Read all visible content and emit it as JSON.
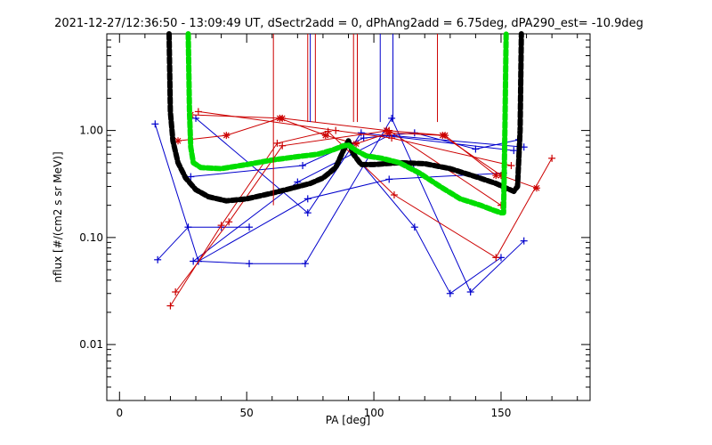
{
  "chart_data": {
    "type": "line",
    "title": "2021-12-27/12:36:50 - 13:09:49 UT, dSectr2add = 0, dPhAng2add = 6.75deg, dPA290_est= -10.9deg",
    "xlabel": "PA [deg]",
    "ylabel": "nflux [#/(cm2 s sr MeV)]",
    "xlim": [
      -5,
      185
    ],
    "ylim": [
      0.003,
      8.0
    ],
    "yscale": "log",
    "x_ticks": [
      0,
      50,
      100,
      150
    ],
    "x_tick_labels": [
      "0",
      "50",
      "100",
      "150"
    ],
    "y_ticks": [
      0.01,
      0.1,
      1.0
    ],
    "y_tick_labels": [
      "0.01",
      "0.10",
      "1.00"
    ],
    "grid": false,
    "colors": {
      "blue": "#0000cc",
      "red": "#cc0000",
      "black": "#000000",
      "green": "#00dd00"
    },
    "series": [
      {
        "color": "blue",
        "marker": "plus",
        "style": "solid",
        "x": [
          14,
          31,
          51,
          73,
          107,
          138,
          159
        ],
        "y": [
          1.15,
          0.06,
          0.057,
          0.057,
          1.3,
          0.031,
          0.093
        ]
      },
      {
        "color": "blue",
        "marker": "plus",
        "style": "solid",
        "x": [
          15,
          27,
          40,
          51
        ],
        "y": [
          0.062,
          0.125,
          0.125,
          0.125
        ]
      },
      {
        "color": "blue",
        "marker": "plus",
        "style": "solid",
        "x": [
          30,
          74,
          95,
          155
        ],
        "y": [
          1.3,
          0.17,
          0.95,
          0.65
        ]
      },
      {
        "color": "blue",
        "marker": "plus",
        "style": "solid",
        "x": [
          31,
          74,
          106,
          151
        ],
        "y": [
          0.06,
          0.23,
          0.35,
          0.4
        ]
      },
      {
        "color": "blue",
        "marker": "plus",
        "style": "solid",
        "x": [
          28,
          72,
          96,
          116,
          140,
          157
        ],
        "y": [
          0.37,
          0.47,
          0.85,
          0.95,
          0.67,
          0.82
        ]
      },
      {
        "color": "blue",
        "marker": "plus",
        "style": "solid",
        "x": [
          29,
          70,
          106,
          159
        ],
        "y": [
          0.06,
          0.33,
          0.9,
          0.7
        ]
      },
      {
        "color": "blue",
        "marker": "plus",
        "style": "solid",
        "x": [
          92,
          116,
          130,
          150
        ],
        "y": [
          0.6,
          0.125,
          0.03,
          0.065
        ]
      },
      {
        "color": "red",
        "marker": "plus",
        "style": "solid",
        "x": [
          20,
          40,
          62,
          82,
          108,
          148,
          170
        ],
        "y": [
          0.023,
          0.13,
          0.76,
          0.98,
          0.25,
          0.065,
          0.55
        ]
      },
      {
        "color": "red",
        "marker": "plus",
        "style": "solid",
        "x": [
          22,
          43,
          64,
          106,
          150
        ],
        "y": [
          0.031,
          0.14,
          0.72,
          1.0,
          0.2
        ]
      },
      {
        "color": "red",
        "marker": "plus",
        "style": "solid",
        "x": [
          31,
          85,
          107,
          154
        ],
        "y": [
          1.5,
          1.0,
          0.85,
          0.47
        ]
      },
      {
        "color": "red",
        "marker": "star",
        "style": "solid",
        "x": [
          23,
          42,
          63,
          81,
          93,
          106,
          127,
          150,
          164
        ],
        "y": [
          0.8,
          0.9,
          1.3,
          0.9,
          0.75,
          0.95,
          0.9,
          0.38,
          0.29
        ]
      },
      {
        "color": "red",
        "marker": "star",
        "style": "solid",
        "x": [
          28,
          64,
          105,
          128,
          148
        ],
        "y": [
          1.4,
          1.3,
          1.0,
          0.9,
          0.38
        ]
      },
      {
        "color": "black",
        "marker": "none",
        "style": "thick-dashed",
        "x": [
          19.5,
          20,
          21,
          23,
          26,
          30,
          35,
          42,
          50,
          60,
          68,
          75,
          80,
          85,
          88,
          90,
          92,
          95,
          100,
          110,
          120,
          130,
          140,
          148,
          152,
          155,
          156.5,
          157.5,
          158
        ],
        "y": [
          8.0,
          1.5,
          0.8,
          0.5,
          0.36,
          0.28,
          0.24,
          0.22,
          0.23,
          0.26,
          0.29,
          0.32,
          0.36,
          0.45,
          0.65,
          0.8,
          0.6,
          0.48,
          0.48,
          0.5,
          0.49,
          0.44,
          0.37,
          0.32,
          0.29,
          0.27,
          0.3,
          1.0,
          8.0
        ]
      },
      {
        "color": "green",
        "marker": "none",
        "style": "thick-dashed",
        "x": [
          27,
          27.5,
          28,
          29,
          32,
          40,
          50,
          60,
          70,
          78,
          84,
          88,
          90,
          93,
          97,
          103,
          110,
          118,
          126,
          134,
          142,
          147,
          150,
          151,
          151.5,
          152
        ],
        "y": [
          8.0,
          1.5,
          0.7,
          0.5,
          0.45,
          0.44,
          0.48,
          0.53,
          0.57,
          0.6,
          0.66,
          0.72,
          0.73,
          0.65,
          0.58,
          0.55,
          0.5,
          0.4,
          0.3,
          0.23,
          0.2,
          0.18,
          0.17,
          0.17,
          1.0,
          8.0
        ]
      },
      {
        "color": "red",
        "marker": "none",
        "style": "spike",
        "x": [
          60.5,
          74,
          77,
          92,
          93.5,
          125
        ],
        "y": [
          0.2,
          1.2,
          1.2,
          1.2,
          1.2,
          1.2
        ]
      },
      {
        "color": "blue",
        "marker": "none",
        "style": "spike",
        "x": [
          75,
          102.5,
          107.5
        ],
        "y": [
          1.2,
          1.2,
          1.2
        ]
      }
    ]
  }
}
